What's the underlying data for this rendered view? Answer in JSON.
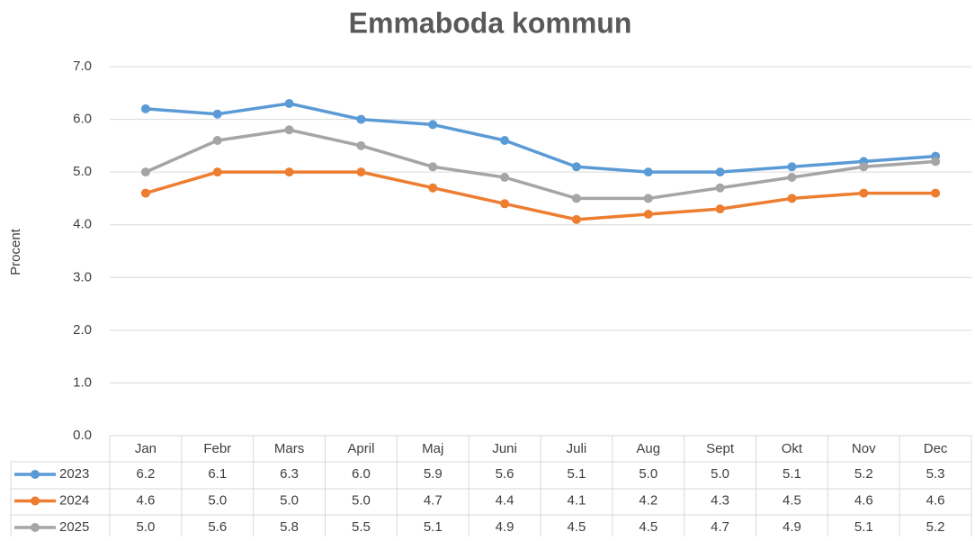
{
  "chart_data": {
    "type": "line",
    "title": "Emmaboda kommun",
    "y_label": "Procent",
    "categories": [
      "Jan",
      "Febr",
      "Mars",
      "April",
      "Maj",
      "Juni",
      "Juli",
      "Aug",
      "Sept",
      "Okt",
      "Nov",
      "Dec"
    ],
    "series": [
      {
        "name": "2023",
        "color": "#5b9bd5",
        "values": [
          6.2,
          6.1,
          6.3,
          6,
          5.9,
          5.6,
          5.1,
          5,
          5,
          5.1,
          5.2,
          5.3
        ],
        "value_labels": [
          "6.2",
          "6.1",
          "6.3",
          "6.0",
          "5.9",
          "5.6",
          "5.1",
          "5.0",
          "5.0",
          "5.1",
          "5.2",
          "5.3"
        ]
      },
      {
        "name": "2024",
        "color": "#ed7d31",
        "values": [
          4.6,
          5,
          5,
          5,
          4.7,
          4.4,
          4.1,
          4.2,
          4.3,
          4.5,
          4.6,
          4.6
        ],
        "value_labels": [
          "4.6",
          "5.0",
          "5.0",
          "5.0",
          "4.7",
          "4.4",
          "4.1",
          "4.2",
          "4.3",
          "4.5",
          "4.6",
          "4.6"
        ]
      },
      {
        "name": "2025",
        "color": "#a5a5a5",
        "values": [
          5,
          5.6,
          5.8,
          5.5,
          5.1,
          4.9,
          4.5,
          4.5,
          4.7,
          4.9,
          5.1,
          5.2
        ],
        "value_labels": [
          "5.0",
          "5.6",
          "5.8",
          "5.5",
          "5.1",
          "4.9",
          "4.5",
          "4.5",
          "4.7",
          "4.9",
          "5.1",
          "5.2"
        ]
      }
    ],
    "ylim": [
      0,
      7
    ],
    "yticks": [
      {
        "value": 0,
        "label": "0.0"
      },
      {
        "value": 1,
        "label": "1.0"
      },
      {
        "value": 2,
        "label": "2.0"
      },
      {
        "value": 3,
        "label": "3.0"
      },
      {
        "value": 4,
        "label": "4.0"
      },
      {
        "value": 5,
        "label": "5.0"
      },
      {
        "value": 6,
        "label": "6.0"
      },
      {
        "value": 7,
        "label": "7.0"
      }
    ],
    "grid": true
  }
}
